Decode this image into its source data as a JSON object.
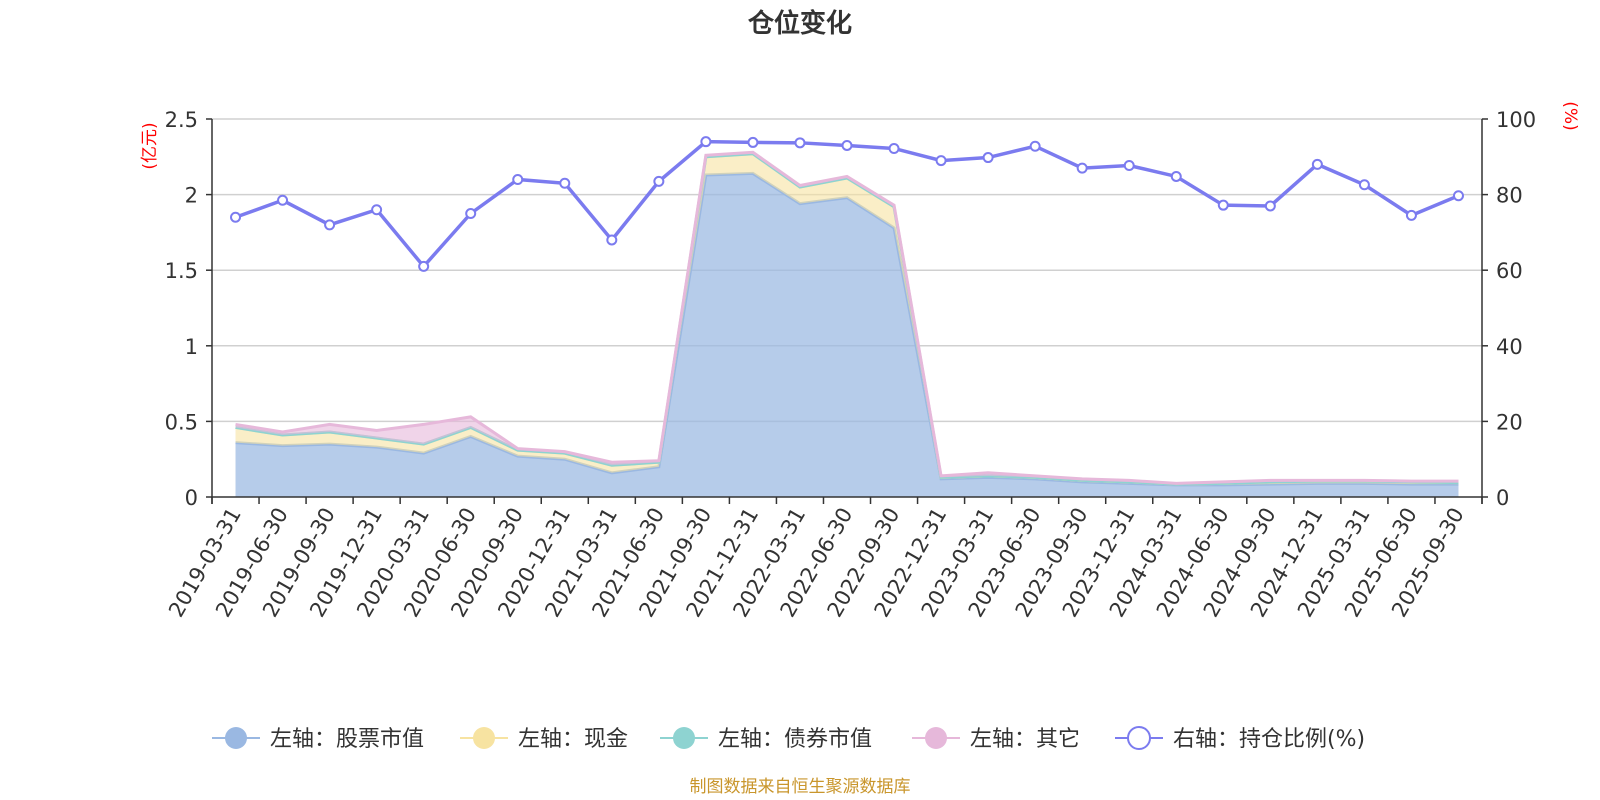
{
  "chart_data": {
    "type": "area",
    "title": "仓位变化",
    "source": "制图数据来自恒生聚源数据库",
    "left_axis": {
      "unit": "(亿元)",
      "min": 0,
      "max": 2.5,
      "ticks": [
        "0",
        "0.5",
        "1",
        "1.5",
        "2",
        "2.5"
      ]
    },
    "right_axis": {
      "unit": "(%)",
      "min": 0,
      "max": 100,
      "ticks": [
        "0",
        "20",
        "40",
        "60",
        "80",
        "100"
      ]
    },
    "categories": [
      "2019-03-31",
      "2019-06-30",
      "2019-09-30",
      "2019-12-31",
      "2020-03-31",
      "2020-06-30",
      "2020-09-30",
      "2020-12-31",
      "2021-03-31",
      "2021-06-30",
      "2021-09-30",
      "2021-12-31",
      "2022-03-31",
      "2022-06-30",
      "2022-09-30",
      "2022-12-31",
      "2023-03-31",
      "2023-06-30",
      "2023-09-30",
      "2023-12-31",
      "2024-03-31",
      "2024-06-30",
      "2024-09-30",
      "2024-12-31",
      "2025-03-31",
      "2025-06-30",
      "2025-09-30"
    ],
    "series": [
      {
        "name": "左轴：股票市值",
        "axis": "left",
        "color": "#9ab8e2",
        "values": [
          0.36,
          0.34,
          0.35,
          0.33,
          0.29,
          0.4,
          0.27,
          0.25,
          0.16,
          0.2,
          2.13,
          2.14,
          1.94,
          1.98,
          1.78,
          0.12,
          0.13,
          0.12,
          0.1,
          0.09,
          0.08,
          0.08,
          0.085,
          0.09,
          0.09,
          0.085,
          0.085
        ]
      },
      {
        "name": "左轴：现金",
        "axis": "left",
        "color": "#f7e3a1",
        "values": [
          0.1,
          0.07,
          0.08,
          0.06,
          0.06,
          0.06,
          0.04,
          0.04,
          0.05,
          0.03,
          0.12,
          0.13,
          0.11,
          0.13,
          0.14,
          0.01,
          0.01,
          0.01,
          0.01,
          0.01,
          0.005,
          0.01,
          0.015,
          0.015,
          0.015,
          0.015,
          0.01
        ]
      },
      {
        "name": "左轴：债券市值",
        "axis": "left",
        "color": "#8ed3d1",
        "values": [
          0,
          0,
          0,
          0,
          0,
          0,
          0,
          0,
          0,
          0,
          0,
          0,
          0,
          0,
          0,
          0,
          0,
          0,
          0,
          0,
          0,
          0,
          0,
          0,
          0,
          0,
          0
        ]
      },
      {
        "name": "左轴：其它",
        "axis": "left",
        "color": "#e6b8da",
        "values": [
          0.02,
          0.02,
          0.05,
          0.05,
          0.13,
          0.07,
          0.01,
          0.01,
          0.02,
          0.01,
          0.01,
          0.01,
          0.01,
          0.01,
          0.01,
          0.01,
          0.02,
          0.01,
          0.01,
          0.01,
          0.005,
          0.01,
          0.01,
          0.005,
          0.005,
          0.005,
          0.01
        ]
      },
      {
        "name": "右轴：持仓比例(%)",
        "axis": "right",
        "color": "#7b7bef",
        "values": [
          74,
          78.5,
          72,
          76,
          61,
          75,
          84,
          83,
          68,
          83.5,
          94,
          93.8,
          93.7,
          93,
          92.2,
          89,
          89.8,
          92.8,
          87,
          87.7,
          84.8,
          77.2,
          77,
          88,
          82.6,
          74.5,
          79.7
        ]
      }
    ]
  }
}
